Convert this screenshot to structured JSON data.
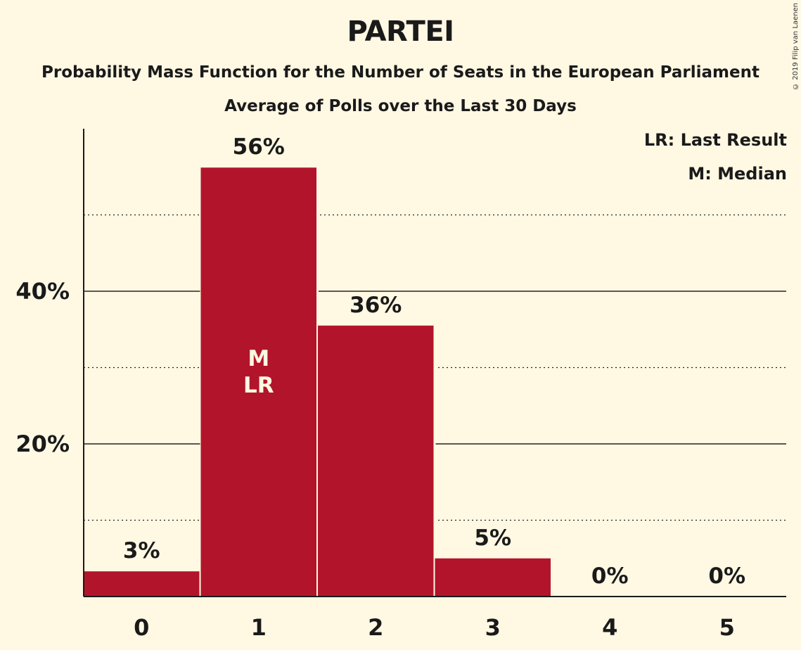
{
  "title": "PARTEI",
  "subtitle": "Probability Mass Function for the Number of Seats in the European Parliament",
  "subtitle2": "Average of Polls over the Last 30 Days",
  "copyright": "© 2019 Filip van Laenen",
  "legend": {
    "last_result": "LR: Last Result",
    "median": "M: Median"
  },
  "colors": {
    "bar": "#b2152b",
    "background": "#fff8e3",
    "marker_text": "#fff8e3"
  },
  "chart_data": {
    "type": "bar",
    "categories": [
      "0",
      "1",
      "2",
      "3",
      "4",
      "5"
    ],
    "values": [
      3.3,
      56.2,
      35.5,
      5.0,
      0,
      0
    ],
    "value_labels": [
      "3%",
      "56%",
      "36%",
      "5%",
      "0%",
      "0%"
    ],
    "ylim": [
      0,
      61.3
    ],
    "y_ticks": [
      {
        "value": 20,
        "label": "20%"
      },
      {
        "value": 40,
        "label": "40%"
      }
    ],
    "minor_gridlines": [
      10,
      30,
      50
    ],
    "markers": [
      {
        "category": "1",
        "lines": [
          "M",
          "LR"
        ]
      }
    ],
    "legend_position": "top-right"
  }
}
